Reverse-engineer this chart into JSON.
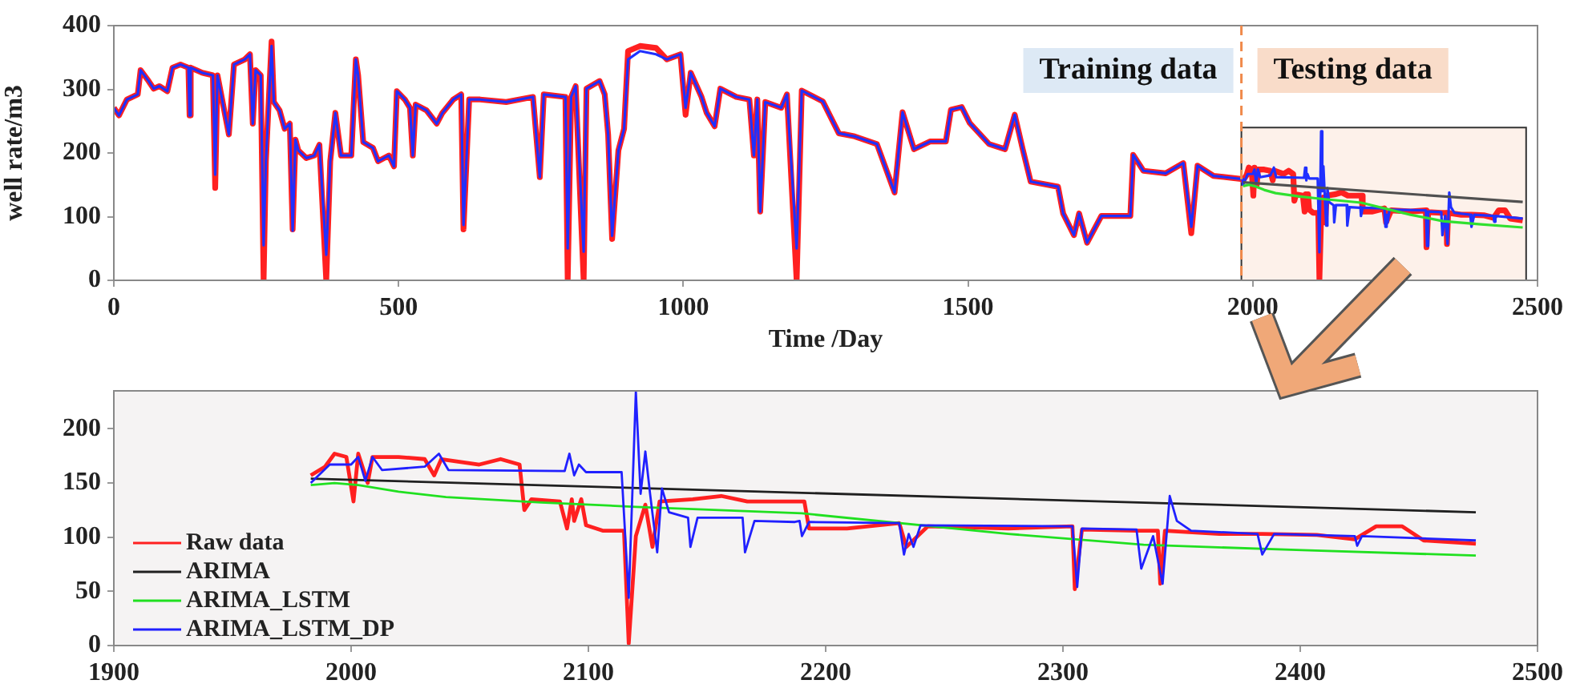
{
  "chart_data": [
    {
      "type": "line",
      "xlabel": "Time /Day",
      "ylabel": "well rate/m3",
      "xlim": [
        0,
        2500
      ],
      "xticks": [
        0,
        500,
        1000,
        1500,
        2000,
        2500
      ],
      "ylim": [
        0,
        400
      ],
      "yticks": [
        0,
        100,
        200,
        300,
        400
      ],
      "grid": false,
      "legend": false,
      "marker": "none",
      "ref_lines": [
        {
          "axis": "x",
          "value": 1980,
          "color": "#f08a4b",
          "line_style": "dashed"
        }
      ],
      "bands": [
        {
          "axis": "x",
          "from": 1980,
          "to": 2480,
          "color": "#fdf1ea"
        }
      ],
      "annotations": [
        "Training data",
        "Testing data"
      ],
      "series": [
        {
          "color": "#ff2020",
          "x": [
            0,
            9,
            23,
            42,
            47,
            61,
            70,
            80,
            94,
            103,
            117,
            131,
            133,
            135,
            155,
            174,
            178,
            182,
            202,
            211,
            230,
            239,
            244,
            249,
            258,
            263,
            267,
            277,
            281,
            291,
            300,
            309,
            314,
            319,
            324,
            338,
            352,
            361,
            373,
            380,
            389,
            399,
            417,
            425,
            429,
            438,
            455,
            464,
            483,
            492,
            497,
            511,
            520,
            525,
            530,
            549,
            567,
            577,
            596,
            610,
            614,
            624,
            643,
            689,
            736,
            748,
            755,
            793,
            797,
            803,
            811,
            825,
            830,
            853,
            862,
            868,
            875,
            886,
            896,
            903,
            924,
            952,
            971,
            995,
            1004,
            1013,
            1032,
            1041,
            1055,
            1065,
            1093,
            1116,
            1124,
            1130,
            1135,
            1144,
            1172,
            1182,
            1199,
            1208,
            1245,
            1273,
            1301,
            1340,
            1371,
            1385,
            1405,
            1433,
            1461,
            1470,
            1489,
            1503,
            1537,
            1565,
            1582,
            1596,
            1610,
            1658,
            1667,
            1686,
            1695,
            1709,
            1734,
            1785,
            1790,
            1808,
            1847,
            1878,
            1892,
            1903,
            1931,
            1982,
            1983,
            1989,
            1993,
            1998,
            2001,
            2003,
            2007,
            2009,
            2020,
            2031,
            2035,
            2038,
            2054,
            2063,
            2071,
            2073,
            2076,
            2088,
            2091,
            2093,
            2094,
            2097,
            2099,
            2106,
            2115,
            2117,
            2120,
            2124,
            2127,
            2130,
            2144,
            2156,
            2167,
            2182,
            2191,
            2193,
            2209,
            2231,
            2234,
            2243,
            2277,
            2304,
            2305,
            2308,
            2331,
            2340,
            2341,
            2343,
            2366,
            2384,
            2407,
            2423,
            2432,
            2443,
            2452,
            2474
          ],
          "values": [
            271,
            259,
            284,
            292,
            330,
            313,
            301,
            305,
            297,
            334,
            339,
            334,
            259,
            334,
            326,
            322,
            145,
            322,
            229,
            339,
            347,
            355,
            246,
            330,
            322,
            0,
            187,
            375,
            280,
            267,
            238,
            246,
            80,
            221,
            204,
            192,
            196,
            213,
            0,
            187,
            263,
            196,
            196,
            347,
            322,
            217,
            208,
            187,
            196,
            179,
            297,
            284,
            271,
            196,
            276,
            267,
            246,
            263,
            284,
            292,
            80,
            284,
            284,
            280,
            288,
            162,
            292,
            288,
            0,
            288,
            305,
            0,
            301,
            313,
            292,
            229,
            65,
            204,
            238,
            360,
            368,
            365,
            347,
            355,
            260,
            326,
            288,
            263,
            242,
            301,
            288,
            284,
            196,
            284,
            108,
            280,
            271,
            292,
            0,
            298,
            281,
            231,
            226,
            214,
            138,
            264,
            206,
            218,
            218,
            268,
            272,
            247,
            214,
            206,
            260,
            206,
            155,
            147,
            105,
            71,
            105,
            59,
            101,
            101,
            197,
            172,
            168,
            184,
            74,
            180,
            164,
            159,
            157,
            165,
            177,
            174,
            133,
            177,
            150,
            174,
            174,
            172,
            157,
            172,
            167,
            172,
            167,
            125,
            135,
            133,
            108,
            135,
            115,
            135,
            111,
            106,
            106,
            2,
            101,
            130,
            91,
            133,
            135,
            138,
            133,
            133,
            133,
            108,
            108,
            113,
            91,
            110,
            108,
            110,
            52,
            107,
            106,
            106,
            57,
            106,
            103,
            103,
            102,
            98,
            110,
            110,
            97,
            94
          ]
        },
        {
          "color": "#2030ff",
          "x": [
            0,
            9,
            23,
            42,
            47,
            61,
            70,
            80,
            94,
            103,
            117,
            131,
            133,
            135,
            155,
            174,
            178,
            182,
            202,
            211,
            230,
            239,
            244,
            249,
            258,
            263,
            267,
            277,
            281,
            291,
            300,
            309,
            314,
            319,
            324,
            338,
            352,
            361,
            373,
            380,
            389,
            399,
            417,
            425,
            429,
            438,
            455,
            464,
            483,
            492,
            497,
            511,
            520,
            525,
            530,
            549,
            567,
            577,
            596,
            610,
            614,
            624,
            643,
            689,
            736,
            748,
            755,
            793,
            797,
            803,
            811,
            825,
            830,
            853,
            862,
            868,
            875,
            886,
            896,
            903,
            924,
            952,
            971,
            995,
            1004,
            1013,
            1032,
            1041,
            1055,
            1065,
            1093,
            1116,
            1124,
            1130,
            1135,
            1144,
            1172,
            1182,
            1199,
            1208,
            1245,
            1273,
            1301,
            1340,
            1371,
            1385,
            1405,
            1433,
            1461,
            1470,
            1489,
            1503,
            1537,
            1565,
            1582,
            1596,
            1610,
            1658,
            1667,
            1686,
            1695,
            1709,
            1734,
            1785,
            1790,
            1808,
            1847,
            1878,
            1892,
            1903,
            1931,
            1982,
            1983,
            1991,
            2000,
            2003,
            2006,
            2009,
            2013,
            2031,
            2037,
            2041,
            2090,
            2092,
            2094,
            2096,
            2099,
            2114,
            2117,
            2120,
            2122,
            2124,
            2126,
            2129,
            2131,
            2134,
            2142,
            2143,
            2146,
            2165,
            2166,
            2170,
            2187,
            2189,
            2190,
            2193,
            2231,
            2233,
            2235,
            2237,
            2240,
            2304,
            2306,
            2308,
            2331,
            2333,
            2338,
            2342,
            2345,
            2348,
            2354,
            2382,
            2384,
            2389,
            2423,
            2424,
            2426,
            2474
          ],
          "values": [
            271,
            259,
            284,
            292,
            330,
            313,
            301,
            305,
            297,
            334,
            339,
            334,
            259,
            334,
            326,
            322,
            166,
            322,
            229,
            339,
            347,
            355,
            246,
            330,
            322,
            55,
            187,
            368,
            280,
            267,
            238,
            246,
            78,
            221,
            204,
            192,
            196,
            213,
            40,
            187,
            263,
            196,
            196,
            347,
            322,
            217,
            208,
            187,
            196,
            179,
            297,
            284,
            271,
            196,
            276,
            267,
            246,
            263,
            284,
            292,
            87,
            284,
            284,
            280,
            288,
            162,
            292,
            288,
            50,
            288,
            305,
            45,
            301,
            313,
            292,
            229,
            70,
            204,
            238,
            347,
            360,
            355,
            347,
            355,
            271,
            326,
            288,
            263,
            242,
            301,
            288,
            284,
            196,
            284,
            108,
            280,
            271,
            292,
            50,
            298,
            281,
            231,
            226,
            214,
            138,
            264,
            206,
            218,
            218,
            268,
            272,
            247,
            214,
            206,
            260,
            206,
            155,
            147,
            105,
            71,
            105,
            59,
            101,
            101,
            197,
            172,
            168,
            184,
            84,
            180,
            164,
            159,
            150,
            167,
            167,
            174,
            152,
            174,
            162,
            165,
            177,
            162,
            161,
            177,
            157,
            167,
            160,
            160,
            44,
            234,
            140,
            179,
            140,
            86,
            145,
            123,
            118,
            91,
            118,
            118,
            86,
            115,
            114,
            115,
            101,
            114,
            113,
            84,
            103,
            91,
            111,
            110,
            54,
            108,
            107,
            71,
            101,
            57,
            138,
            115,
            106,
            103,
            84,
            103,
            101,
            92,
            101,
            97
          ]
        },
        {
          "color": "#505050",
          "x": [
            1983,
            2474
          ],
          "values": [
            154,
            123
          ]
        },
        {
          "color": "#30e030",
          "x": [
            1983,
            1993,
            2003,
            2020,
            2040,
            2080,
            2120,
            2190,
            2277,
            2334,
            2401,
            2474
          ],
          "values": [
            148,
            150,
            148,
            142,
            137,
            132,
            128,
            122,
            103,
            93,
            88,
            83
          ]
        }
      ]
    },
    {
      "type": "line",
      "xlim": [
        1900,
        2500
      ],
      "xticks": [
        1900,
        2000,
        2100,
        2200,
        2300,
        2400,
        2500
      ],
      "ylim": [
        0,
        235
      ],
      "yticks": [
        0,
        50,
        100,
        150,
        200
      ],
      "grid": false,
      "legend": "bottom left",
      "marker": "none",
      "series": [
        {
          "name": "Raw data",
          "color": "#ff2020",
          "x": [
            1983,
            1989,
            1993,
            1998,
            2001,
            2003,
            2007,
            2009,
            2020,
            2031,
            2035,
            2038,
            2054,
            2063,
            2071,
            2073,
            2076,
            2088,
            2091,
            2093,
            2094,
            2097,
            2099,
            2106,
            2115,
            2117,
            2120,
            2124,
            2127,
            2130,
            2144,
            2156,
            2167,
            2182,
            2191,
            2193,
            2209,
            2231,
            2234,
            2243,
            2277,
            2304,
            2305,
            2308,
            2331,
            2340,
            2341,
            2343,
            2366,
            2384,
            2407,
            2423,
            2432,
            2443,
            2452,
            2474
          ],
          "values": [
            157,
            165,
            177,
            174,
            133,
            177,
            150,
            174,
            174,
            172,
            157,
            172,
            167,
            172,
            167,
            125,
            135,
            133,
            108,
            135,
            115,
            135,
            111,
            106,
            106,
            2,
            101,
            130,
            91,
            133,
            135,
            138,
            133,
            133,
            133,
            108,
            108,
            113,
            91,
            110,
            108,
            110,
            52,
            107,
            106,
            106,
            57,
            106,
            103,
            103,
            102,
            98,
            110,
            110,
            97,
            94
          ]
        },
        {
          "name": "ARIMA",
          "color": "#202020",
          "x": [
            1983,
            2474
          ],
          "values": [
            154,
            123
          ]
        },
        {
          "name": "ARIMA_LSTM",
          "color": "#20e020",
          "x": [
            1983,
            1993,
            2003,
            2020,
            2040,
            2080,
            2120,
            2190,
            2277,
            2334,
            2401,
            2474
          ],
          "values": [
            148,
            150,
            148,
            142,
            137,
            132,
            128,
            122,
            103,
            93,
            88,
            83
          ]
        },
        {
          "name": "ARIMA_LSTM_DP",
          "color": "#2020ff",
          "x": [
            1983,
            1991,
            2000,
            2003,
            2006,
            2009,
            2013,
            2031,
            2037,
            2041,
            2090,
            2092,
            2094,
            2096,
            2099,
            2114,
            2117,
            2120,
            2122,
            2124,
            2126,
            2129,
            2131,
            2134,
            2142,
            2143,
            2146,
            2165,
            2166,
            2170,
            2187,
            2189,
            2190,
            2193,
            2231,
            2233,
            2235,
            2237,
            2240,
            2304,
            2306,
            2308,
            2331,
            2333,
            2338,
            2342,
            2345,
            2348,
            2354,
            2382,
            2384,
            2389,
            2423,
            2424,
            2426,
            2474
          ],
          "values": [
            150,
            167,
            167,
            174,
            152,
            174,
            162,
            165,
            177,
            162,
            161,
            177,
            157,
            167,
            160,
            160,
            44,
            234,
            140,
            179,
            140,
            86,
            145,
            123,
            118,
            91,
            118,
            118,
            86,
            115,
            114,
            115,
            101,
            114,
            113,
            84,
            103,
            91,
            111,
            110,
            54,
            108,
            107,
            71,
            101,
            57,
            138,
            115,
            106,
            103,
            84,
            103,
            101,
            92,
            101,
            97
          ]
        }
      ]
    }
  ]
}
